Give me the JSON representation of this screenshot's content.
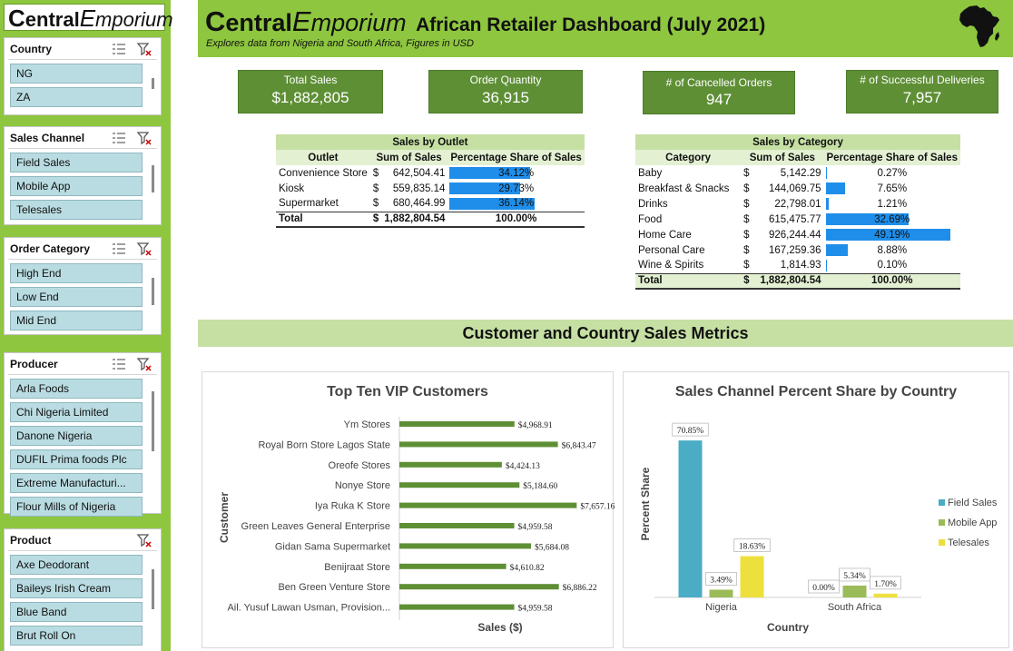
{
  "sidebar": {
    "logo": {
      "c": "C",
      "entral": "entral",
      "e": "E",
      "mporium": "mporium"
    },
    "slicers": [
      {
        "title": "Country",
        "items": [
          "NG",
          "ZA"
        ]
      },
      {
        "title": "Sales Channel",
        "items": [
          "Field Sales",
          "Mobile App",
          "Telesales"
        ]
      },
      {
        "title": "Order Category",
        "items": [
          "High End",
          "Low End",
          "Mid End"
        ]
      },
      {
        "title": "Producer",
        "items": [
          "Arla Foods",
          "Chi Nigeria Limited",
          "Danone Nigeria",
          "DUFIL Prima foods Plc",
          "Extreme Manufacturi...",
          "Flour Mills of Nigeria"
        ]
      },
      {
        "title": "Product",
        "items": [
          "Axe Deodorant",
          "Baileys Irish Cream",
          "Blue Band",
          "Brut Roll On"
        ]
      }
    ]
  },
  "header": {
    "logo": {
      "c": "C",
      "entral": "entral",
      "e": "E",
      "mporium": "mporium"
    },
    "title": "African Retailer Dashboard (July 2021)",
    "subtitle": "Explores data from Nigeria and South Africa, Figures in USD"
  },
  "kpis": {
    "total_sales": {
      "label": "Total Sales",
      "value": "$1,882,805"
    },
    "order_quantity": {
      "label": "Order Quantity",
      "value": "36,915"
    },
    "cancelled": {
      "label": "# of Cancelled Orders",
      "value": "947"
    },
    "deliveries": {
      "label": "# of Successful Deliveries",
      "value": "7,957"
    }
  },
  "sales_by_outlet": {
    "title": "Sales by Outlet",
    "headers": [
      "Outlet",
      "Sum of Sales",
      "Percentage Share of Sales"
    ],
    "rows": [
      {
        "name": "Convenience Store",
        "cur": "$",
        "sales": "642,504.41",
        "pct": "34.12%",
        "share": 0.3412
      },
      {
        "name": "Kiosk",
        "cur": "$",
        "sales": "559,835.14",
        "pct": "29.73%",
        "share": 0.2973
      },
      {
        "name": "Supermarket",
        "cur": "$",
        "sales": "680,464.99",
        "pct": "36.14%",
        "share": 0.3614
      }
    ],
    "total": {
      "name": "Total",
      "cur": "$",
      "sales": "1,882,804.54",
      "pct": "100.00%"
    }
  },
  "sales_by_category": {
    "title": "Sales by Category",
    "headers": [
      "Category",
      "Sum of Sales",
      "Percentage Share of Sales"
    ],
    "rows": [
      {
        "name": "Baby",
        "cur": "$",
        "sales": "5,142.29",
        "pct": "0.27%",
        "share": 0.0027
      },
      {
        "name": "Breakfast & Snacks",
        "cur": "$",
        "sales": "144,069.75",
        "pct": "7.65%",
        "share": 0.0765
      },
      {
        "name": "Drinks",
        "cur": "$",
        "sales": "22,798.01",
        "pct": "1.21%",
        "share": 0.0121
      },
      {
        "name": "Food",
        "cur": "$",
        "sales": "615,475.77",
        "pct": "32.69%",
        "share": 0.3269
      },
      {
        "name": "Home Care",
        "cur": "$",
        "sales": "926,244.44",
        "pct": "49.19%",
        "share": 0.4919
      },
      {
        "name": "Personal Care",
        "cur": "$",
        "sales": "167,259.36",
        "pct": "8.88%",
        "share": 0.0888
      },
      {
        "name": "Wine & Spirits",
        "cur": "$",
        "sales": "1,814.93",
        "pct": "0.10%",
        "share": 0.001
      }
    ],
    "total": {
      "name": "Total",
      "cur": "$",
      "sales": "1,882,804.54",
      "pct": "100.00%"
    }
  },
  "section_title": "Customer and Country Sales Metrics",
  "chart_data": [
    {
      "type": "bar",
      "orientation": "horizontal",
      "title": "Top Ten VIP Customers",
      "xlabel": "Sales ($)",
      "ylabel": "Customer",
      "xlim": [
        0,
        7800
      ],
      "grid": false,
      "color": "#5e8f35",
      "categories": [
        "Ym Stores",
        "Royal Born Store Lagos State",
        "Oreofe Stores",
        "Nonye Store",
        "Iya Ruka K Store",
        "Green Leaves General Enterprise",
        "Gidan Sama Supermarket",
        "Benijraat  Store",
        "Ben Green Venture Store",
        "Ail. Yusuf Lawan Usman, Provision..."
      ],
      "values": [
        4968.91,
        6843.47,
        4424.13,
        5184.6,
        7657.16,
        4959.58,
        5684.08,
        4610.82,
        6886.22,
        4959.58
      ],
      "value_labels": [
        "$4,968.91",
        "$6,843.47",
        "$4,424.13",
        "$5,184.60",
        "$7,657.16",
        "$4,959.58",
        "$5,684.08",
        "$4,610.82",
        "$6,886.22",
        "$4,959.58"
      ]
    },
    {
      "type": "bar",
      "title": "Sales Channel Percent Share by Country",
      "xlabel": "Country",
      "ylabel": "Percent Share",
      "ylim": [
        0,
        75
      ],
      "grid": false,
      "legend": "right",
      "categories": [
        "Nigeria",
        "South Africa"
      ],
      "series": [
        {
          "name": "Field Sales",
          "color": "#4bacc6",
          "values": [
            70.85,
            0.0
          ],
          "labels": [
            "70.85%",
            "0.00%"
          ]
        },
        {
          "name": "Mobile App",
          "color": "#9bbb59",
          "values": [
            3.49,
            5.34
          ],
          "labels": [
            "3.49%",
            "5.34%"
          ]
        },
        {
          "name": "Telesales",
          "color": "#ede03d",
          "values": [
            18.63,
            1.7
          ],
          "labels": [
            "18.63%",
            "1.70%"
          ]
        }
      ]
    }
  ]
}
